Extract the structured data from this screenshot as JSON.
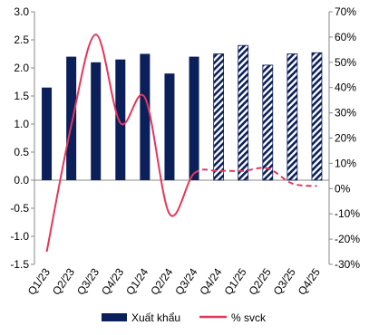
{
  "chart_data": {
    "type": "bar+line",
    "title": "",
    "categories": [
      "Q1/23",
      "Q2/23",
      "Q3/23",
      "Q4/23",
      "Q1/24",
      "Q2/24",
      "Q3/24",
      "Q4/24",
      "Q1/25",
      "Q2/25",
      "Q3/25",
      "Q4/25"
    ],
    "series": [
      {
        "name": "Xuất khẩu",
        "type": "bar",
        "axis": "left",
        "values": [
          1.65,
          2.2,
          2.1,
          2.15,
          2.25,
          1.9,
          2.2,
          2.25,
          2.4,
          2.05,
          2.25,
          2.27
        ],
        "forecast_from_index": 7,
        "color": "#0b1f5b"
      },
      {
        "name": "% svck",
        "type": "line",
        "axis": "right",
        "unit": "%",
        "values": [
          -25,
          25,
          61,
          26,
          36,
          -10,
          6,
          7,
          7,
          8,
          2,
          1
        ],
        "forecast_from_index": 7,
        "color": "#e5365a"
      }
    ],
    "y_left": {
      "min": -1.5,
      "max": 3.0,
      "step": 0.5,
      "tick_labels": [
        "-1.5",
        "-1.0",
        "-0.5",
        "0.0",
        "0.5",
        "1.0",
        "1.5",
        "2.0",
        "2.5",
        "3.0"
      ]
    },
    "y_right": {
      "min": -30,
      "max": 70,
      "step": 10,
      "tick_labels": [
        "-30%",
        "-20%",
        "-10%",
        "0%",
        "10%",
        "20%",
        "30%",
        "40%",
        "50%",
        "60%",
        "70%"
      ]
    },
    "grid": false,
    "legend_position": "bottom"
  }
}
